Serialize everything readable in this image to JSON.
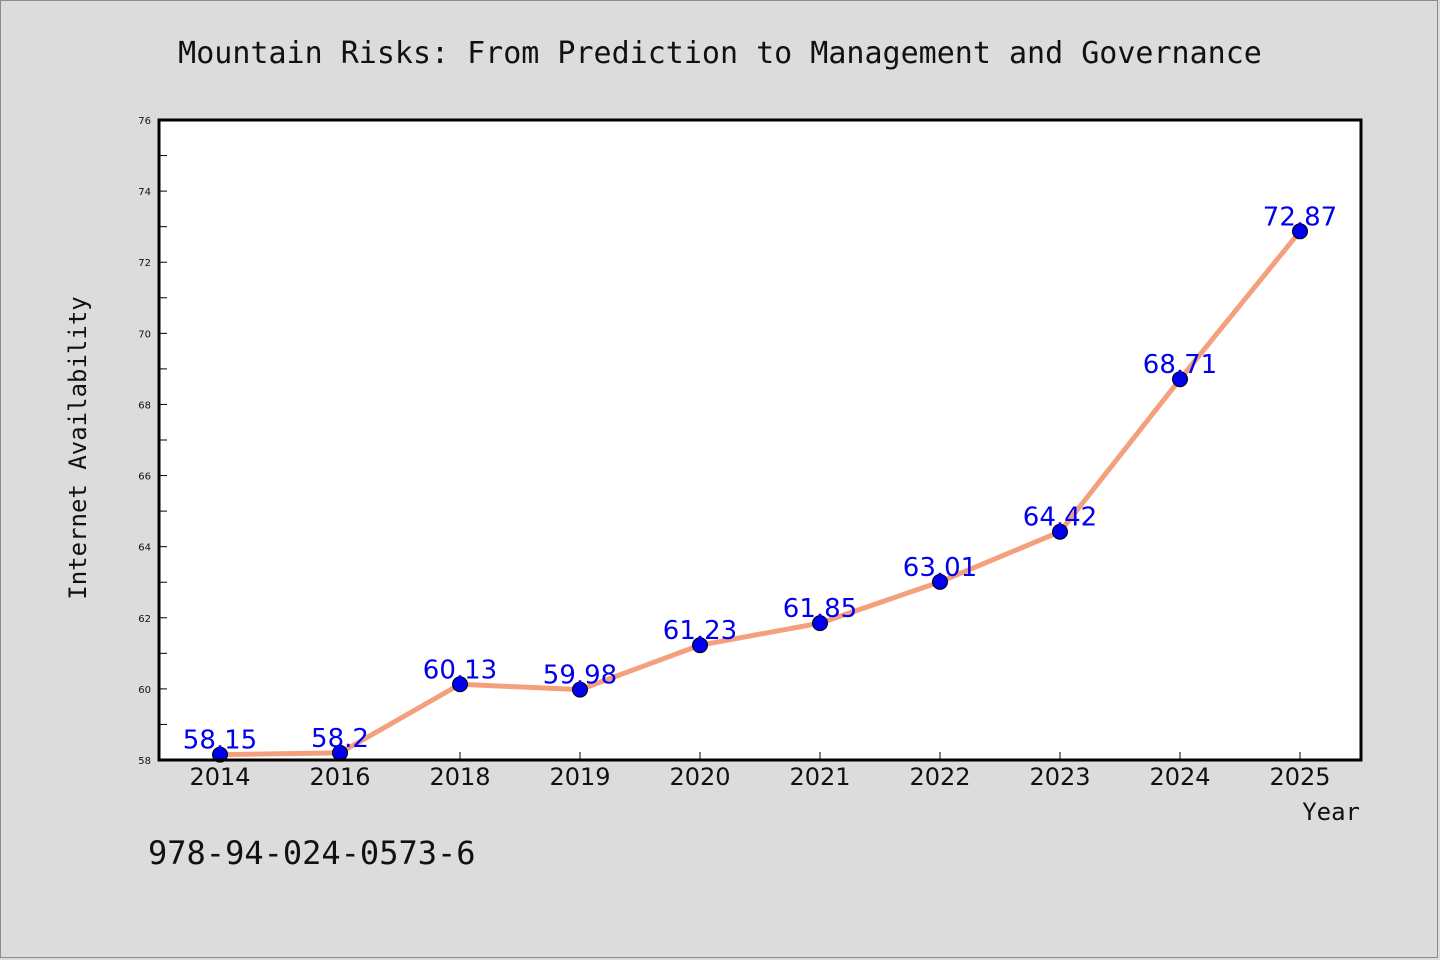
{
  "chart_data": {
    "type": "line",
    "title": "Mountain Risks: From Prediction to Management and Governance",
    "xlabel": "Year",
    "ylabel": "Internet Availability",
    "categories": [
      "2014",
      "2016",
      "2018",
      "2019",
      "2020",
      "2021",
      "2022",
      "2023",
      "2024",
      "2025"
    ],
    "series": [
      {
        "values": [
          58.15,
          58.2,
          60.13,
          59.98,
          61.23,
          61.85,
          63.01,
          64.42,
          68.71,
          72.87
        ],
        "labels": [
          "58.15",
          "58.2",
          "60.13",
          "59.98",
          "61.23",
          "61.85",
          "63.01",
          "64.42",
          "68.71",
          "72.87"
        ]
      }
    ],
    "ylim": [
      58,
      76
    ],
    "yticks": [
      "58",
      "60",
      "62",
      "64",
      "66",
      "68",
      "70",
      "72",
      "74",
      "76"
    ],
    "grid": false,
    "colors": {
      "line": "#f4a07c",
      "marker": "#0000ee",
      "label": "#0000ee",
      "background": "#dcdcdc",
      "plot_background": "#ffffff"
    }
  },
  "footer": {
    "isbn": "978-94-024-0573-6"
  }
}
